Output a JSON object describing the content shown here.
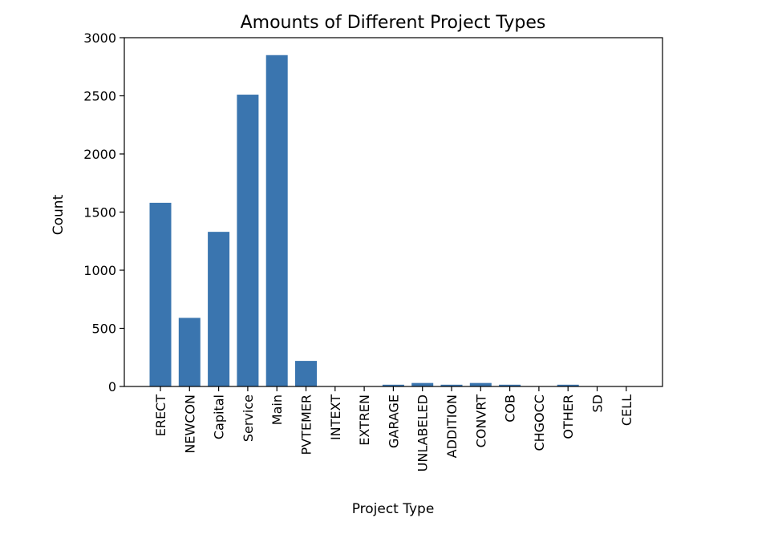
{
  "chart_data": {
    "type": "bar",
    "title": "Amounts of Different Project Types",
    "xlabel": "Project Type",
    "ylabel": "Count",
    "ylim": [
      0,
      3000
    ],
    "yticks": [
      0,
      500,
      1000,
      1500,
      2000,
      2500,
      3000
    ],
    "grid": false,
    "legend": "none",
    "bar_color": "#3a75af",
    "categories": [
      "ERECT",
      "NEWCON",
      "Capital",
      "Service",
      "Main",
      "PVTEMER",
      "INTEXT",
      "EXTREN",
      "GARAGE",
      "UNLABELED",
      "ADDITION",
      "CONVRT",
      "COB",
      "CHGOCC",
      "OTHER",
      "SD",
      "CELL"
    ],
    "values": [
      1580,
      590,
      1330,
      2510,
      2850,
      220,
      2,
      2,
      15,
      30,
      15,
      30,
      15,
      3,
      15,
      2,
      2
    ]
  }
}
